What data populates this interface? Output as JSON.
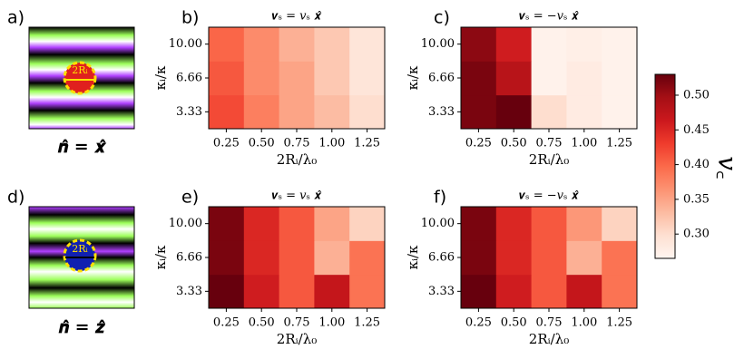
{
  "insets": [
    {
      "label": "a)",
      "caption": "𝒏̂ = 𝒙̂",
      "annotation": "2Rᵢ"
    },
    {
      "label": "d)",
      "caption": "𝒏̂ = 𝒛̂",
      "annotation": "2Rᵢ"
    }
  ],
  "chart_data": [
    {
      "type": "heatmap",
      "panel_label": "b)",
      "title": "𝒗ₛ = 𝑣ₛ 𝒙̂",
      "xlabel": "2Rᵢ/λ₀",
      "ylabel": "κᵢ/κ",
      "x": [
        "0.25",
        "0.50",
        "0.75",
        "1.00",
        "1.25"
      ],
      "y": [
        "3.33",
        "6.66",
        "10.00"
      ],
      "values": [
        [
          0.42,
          0.38,
          0.35,
          0.33,
          0.3
        ],
        [
          0.41,
          0.37,
          0.35,
          0.32,
          0.29
        ],
        [
          0.4,
          0.37,
          0.34,
          0.32,
          0.29
        ]
      ]
    },
    {
      "type": "heatmap",
      "panel_label": "c)",
      "title": "𝒗ₛ = −𝑣ₛ 𝒙̂",
      "xlabel": "2Rᵢ/λ₀",
      "ylabel": "κᵢ/κ",
      "x": [
        "0.25",
        "0.50",
        "0.75",
        "1.00",
        "1.25"
      ],
      "y": [
        "3.33",
        "6.66",
        "10.00"
      ],
      "values": [
        [
          0.52,
          0.53,
          0.3,
          0.28,
          0.27
        ],
        [
          0.52,
          0.48,
          0.27,
          0.28,
          0.27
        ],
        [
          0.51,
          0.46,
          0.27,
          0.275,
          0.27
        ]
      ]
    },
    {
      "type": "heatmap",
      "panel_label": "e)",
      "title": "𝒗ₛ = 𝑣ₛ 𝒙̂",
      "xlabel": "2Rᵢ/λ₀",
      "ylabel": "κᵢ/κ",
      "x": [
        "0.25",
        "0.50",
        "0.75",
        "1.00",
        "1.25"
      ],
      "y": [
        "3.33",
        "6.66",
        "10.00"
      ],
      "values": [
        [
          0.53,
          0.46,
          0.41,
          0.47,
          0.39
        ],
        [
          0.52,
          0.45,
          0.41,
          0.34,
          0.39
        ],
        [
          0.52,
          0.45,
          0.41,
          0.35,
          0.31
        ]
      ]
    },
    {
      "type": "heatmap",
      "panel_label": "f)",
      "title": "𝒗ₛ = −𝑣ₛ 𝒙̂",
      "xlabel": "2Rᵢ/λ₀",
      "ylabel": "κᵢ/κ",
      "x": [
        "0.25",
        "0.50",
        "0.75",
        "1.00",
        "1.25"
      ],
      "y": [
        "3.33",
        "6.66",
        "10.00"
      ],
      "values": [
        [
          0.53,
          0.46,
          0.41,
          0.47,
          0.39
        ],
        [
          0.52,
          0.45,
          0.41,
          0.34,
          0.39
        ],
        [
          0.52,
          0.45,
          0.41,
          0.36,
          0.31
        ]
      ]
    },
    {
      "type": "colorbar",
      "label": "𝑣꜀",
      "zlim": [
        0.265,
        0.53
      ],
      "zticks": [
        {
          "value": 0.3,
          "label": "0.30"
        },
        0.35,
        {
          "value": 0.4,
          "label": "0.40"
        },
        0.45,
        {
          "value": 0.5,
          "label": "0.50"
        }
      ],
      "colormap": [
        "#fff5f0",
        "#fee0d2",
        "#fcbba1",
        "#fc9272",
        "#fb6a4a",
        "#ef3b2c",
        "#cb181d",
        "#a50f15",
        "#67000d"
      ]
    }
  ]
}
